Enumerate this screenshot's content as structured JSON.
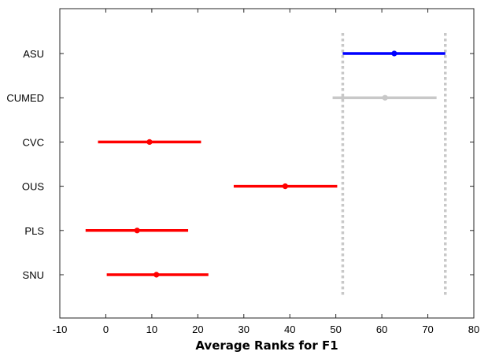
{
  "chart_data": {
    "type": "interval",
    "xlabel": "Average Ranks for F1",
    "title": "",
    "ylabel": "",
    "xlim": [
      -10,
      80
    ],
    "xticks": [
      -10,
      0,
      10,
      20,
      30,
      40,
      50,
      60,
      70,
      80
    ],
    "grid": false,
    "legend": "none",
    "categories": [
      "ASU",
      "CUMED",
      "CVC",
      "OUS",
      "PLS",
      "SNU"
    ],
    "series": [
      {
        "values": [
          {
            "label": "ASU",
            "mean": 62.7,
            "low": 51.5,
            "high": 73.8,
            "color": "#0000ff"
          },
          {
            "label": "CUMED",
            "mean": 60.7,
            "low": 49.3,
            "high": 71.9,
            "color": "#c8c8c8"
          },
          {
            "label": "CVC",
            "mean": 9.5,
            "low": -1.7,
            "high": 20.7,
            "color": "#ff0000"
          },
          {
            "label": "OUS",
            "mean": 39.0,
            "low": 27.8,
            "high": 50.3,
            "color": "#ff0000"
          },
          {
            "label": "PLS",
            "mean": 6.8,
            "low": -4.4,
            "high": 17.9,
            "color": "#ff0000"
          },
          {
            "label": "SNU",
            "mean": 11.0,
            "low": 0.2,
            "high": 22.3,
            "color": "#ff0000"
          }
        ]
      }
    ],
    "reference_lines": [
      51.5,
      73.8
    ],
    "reference_line_color": "#c8c8c8"
  }
}
